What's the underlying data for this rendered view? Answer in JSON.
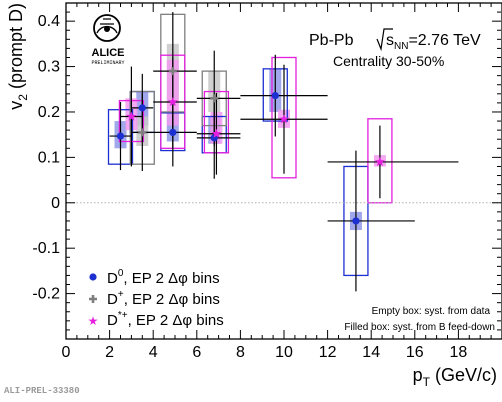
{
  "footer_label": "ALI-PREL-33380",
  "logo": {
    "name": "ALICE",
    "status": "PRELIMINARY"
  },
  "collision": {
    "system": "Pb-Pb",
    "energy_label": "√sNN=2.76 TeV",
    "centrality": "Centrality 30-50%"
  },
  "box_notes": [
    "Empty box: syst. from data",
    "Filled box: syst. from B feed-down"
  ],
  "colors": {
    "d0": "#1c2fd1",
    "dplus": "#7f7f7f",
    "dstar": "#e41fdf",
    "d0_feed": "#8f99e8",
    "dplus_feed": "#c8c8c8",
    "dstar_feed": "#f29af0"
  },
  "chart_data": {
    "type": "scatter",
    "xlabel": "pT (GeV/c)",
    "ylabel": "v2 (prompt D)",
    "xlim": [
      0,
      20
    ],
    "ylim": [
      -0.3,
      0.44
    ],
    "x_ticks": [
      "0",
      "2",
      "4",
      "6",
      "8",
      "10",
      "12",
      "14",
      "16",
      "18"
    ],
    "y_ticks": [
      "-0.2",
      "-0.1",
      "0",
      "0.1",
      "0.2",
      "0.3",
      "0.4"
    ],
    "reference_line": 0,
    "grid": false,
    "legend_position": "bottom-left",
    "series": [
      {
        "name": "D0, EP 2 Δφ bins",
        "marker": "circle",
        "color": "#1c2fd1",
        "points": [
          {
            "x": 2.5,
            "y": 0.147,
            "xerr": [
              0.5,
              0.5
            ],
            "yerr": 0.075,
            "sys": [
              0.085,
              0.205
            ],
            "feed": [
              0.12,
              0.18
            ]
          },
          {
            "x": 3.5,
            "y": 0.209,
            "xerr": [
              0.5,
              0.5
            ],
            "yerr": 0.075,
            "sys": [
              0.155,
              0.245
            ],
            "feed": [
              0.17,
              0.245
            ]
          },
          {
            "x": 4.9,
            "y": 0.155,
            "xerr": [
              0.9,
              1.1
            ],
            "yerr": 0.075,
            "sys": [
              0.115,
              0.198
            ],
            "feed": [
              0.135,
              0.198
            ]
          },
          {
            "x": 6.8,
            "y": 0.143,
            "xerr": [
              0.8,
              1.2
            ],
            "yerr": 0.09,
            "sys": [
              0.11,
              0.19
            ],
            "feed": [
              0.13,
              0.19
            ]
          },
          {
            "x": 9.6,
            "y": 0.236,
            "xerr": [
              1.6,
              2.4
            ],
            "yerr": 0.09,
            "sys": [
              0.18,
              0.295
            ],
            "feed": [
              0.2,
              0.295
            ]
          },
          {
            "x": 13.3,
            "y": -0.04,
            "xerr": [
              1.3,
              2.7
            ],
            "yerr": 0.155,
            "sys": [
              -0.16,
              0.08
            ],
            "feed": [
              -0.06,
              -0.02
            ]
          }
        ]
      },
      {
        "name": "D+, EP 2 Δφ bins",
        "marker": "cross",
        "color": "#7f7f7f",
        "points": [
          {
            "x": 3.5,
            "y": 0.155,
            "xerr": [
              0.5,
              0.5
            ],
            "yerr": 0.085,
            "sys": [
              0.085,
              0.245
            ],
            "feed": [
              0.125,
              0.19
            ]
          },
          {
            "x": 4.9,
            "y": 0.29,
            "xerr": [
              0.9,
              1.1
            ],
            "yerr": 0.13,
            "sys": [
              0.2,
              0.415
            ],
            "feed": [
              0.22,
              0.35
            ]
          },
          {
            "x": 6.8,
            "y": 0.23,
            "xerr": [
              0.8,
              1.2
            ],
            "yerr": 0.105,
            "sys": [
              0.17,
              0.29
            ],
            "feed": [
              0.2,
              0.29
            ]
          }
        ]
      },
      {
        "name": "D*+, EP 2 Δφ bins",
        "marker": "star",
        "color": "#e41fdf",
        "points": [
          {
            "x": 3.0,
            "y": 0.19,
            "xerr": [
              0.5,
              0.5
            ],
            "yerr": 0.11,
            "sys": [
              0.135,
              0.225
            ],
            "feed": [
              0.16,
              0.23
            ]
          },
          {
            "x": 4.9,
            "y": 0.222,
            "xerr": [
              0.9,
              1.1
            ],
            "yerr": 0.1,
            "sys": [
              0.12,
              0.325
            ],
            "feed": [
              0.17,
              0.315
            ]
          },
          {
            "x": 6.9,
            "y": 0.152,
            "xerr": [
              0.9,
              1.1
            ],
            "yerr": 0.09,
            "sys": [
              0.11,
              0.245
            ],
            "feed": [
              0.13,
              0.2
            ]
          },
          {
            "x": 10.0,
            "y": 0.184,
            "xerr": [
              2.0,
              2.0
            ],
            "yerr": 0.12,
            "sys": [
              0.055,
              0.32
            ],
            "feed": [
              0.165,
              0.205
            ]
          },
          {
            "x": 14.4,
            "y": 0.09,
            "xerr": [
              2.4,
              3.6
            ],
            "yerr": 0.08,
            "sys": [
              0.0,
              0.185
            ],
            "feed": [
              0.08,
              0.105
            ]
          }
        ]
      }
    ]
  }
}
